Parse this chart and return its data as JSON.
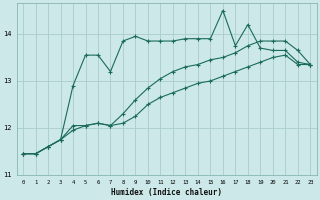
{
  "xlabel": "Humidex (Indice chaleur)",
  "bg_color": "#cce8e8",
  "grid_color": "#aacccc",
  "line_color": "#1a6b5a",
  "x_values": [
    0,
    1,
    2,
    3,
    4,
    5,
    6,
    7,
    8,
    9,
    10,
    11,
    12,
    13,
    14,
    15,
    16,
    17,
    18,
    19,
    20,
    21,
    22,
    23
  ],
  "series1": [
    11.45,
    11.45,
    11.6,
    11.75,
    12.9,
    13.55,
    13.55,
    13.2,
    13.85,
    13.95,
    13.85,
    13.85,
    13.85,
    13.9,
    13.9,
    13.9,
    14.5,
    13.75,
    14.2,
    13.7,
    13.65,
    13.65,
    13.4,
    13.35
  ],
  "series2": [
    11.45,
    11.45,
    11.6,
    11.75,
    12.05,
    12.05,
    12.1,
    12.05,
    12.3,
    12.6,
    12.85,
    13.05,
    13.2,
    13.3,
    13.35,
    13.45,
    13.5,
    13.6,
    13.75,
    13.85,
    13.85,
    13.85,
    13.65,
    13.35
  ],
  "series3": [
    11.45,
    11.45,
    11.6,
    11.75,
    11.95,
    12.05,
    12.1,
    12.05,
    12.1,
    12.25,
    12.5,
    12.65,
    12.75,
    12.85,
    12.95,
    13.0,
    13.1,
    13.2,
    13.3,
    13.4,
    13.5,
    13.55,
    13.35,
    13.35
  ],
  "ylim": [
    11.0,
    14.65
  ],
  "yticks": [
    11,
    12,
    13,
    14
  ],
  "xticks": [
    0,
    1,
    2,
    3,
    4,
    5,
    6,
    7,
    8,
    9,
    10,
    11,
    12,
    13,
    14,
    15,
    16,
    17,
    18,
    19,
    20,
    21,
    22,
    23
  ]
}
